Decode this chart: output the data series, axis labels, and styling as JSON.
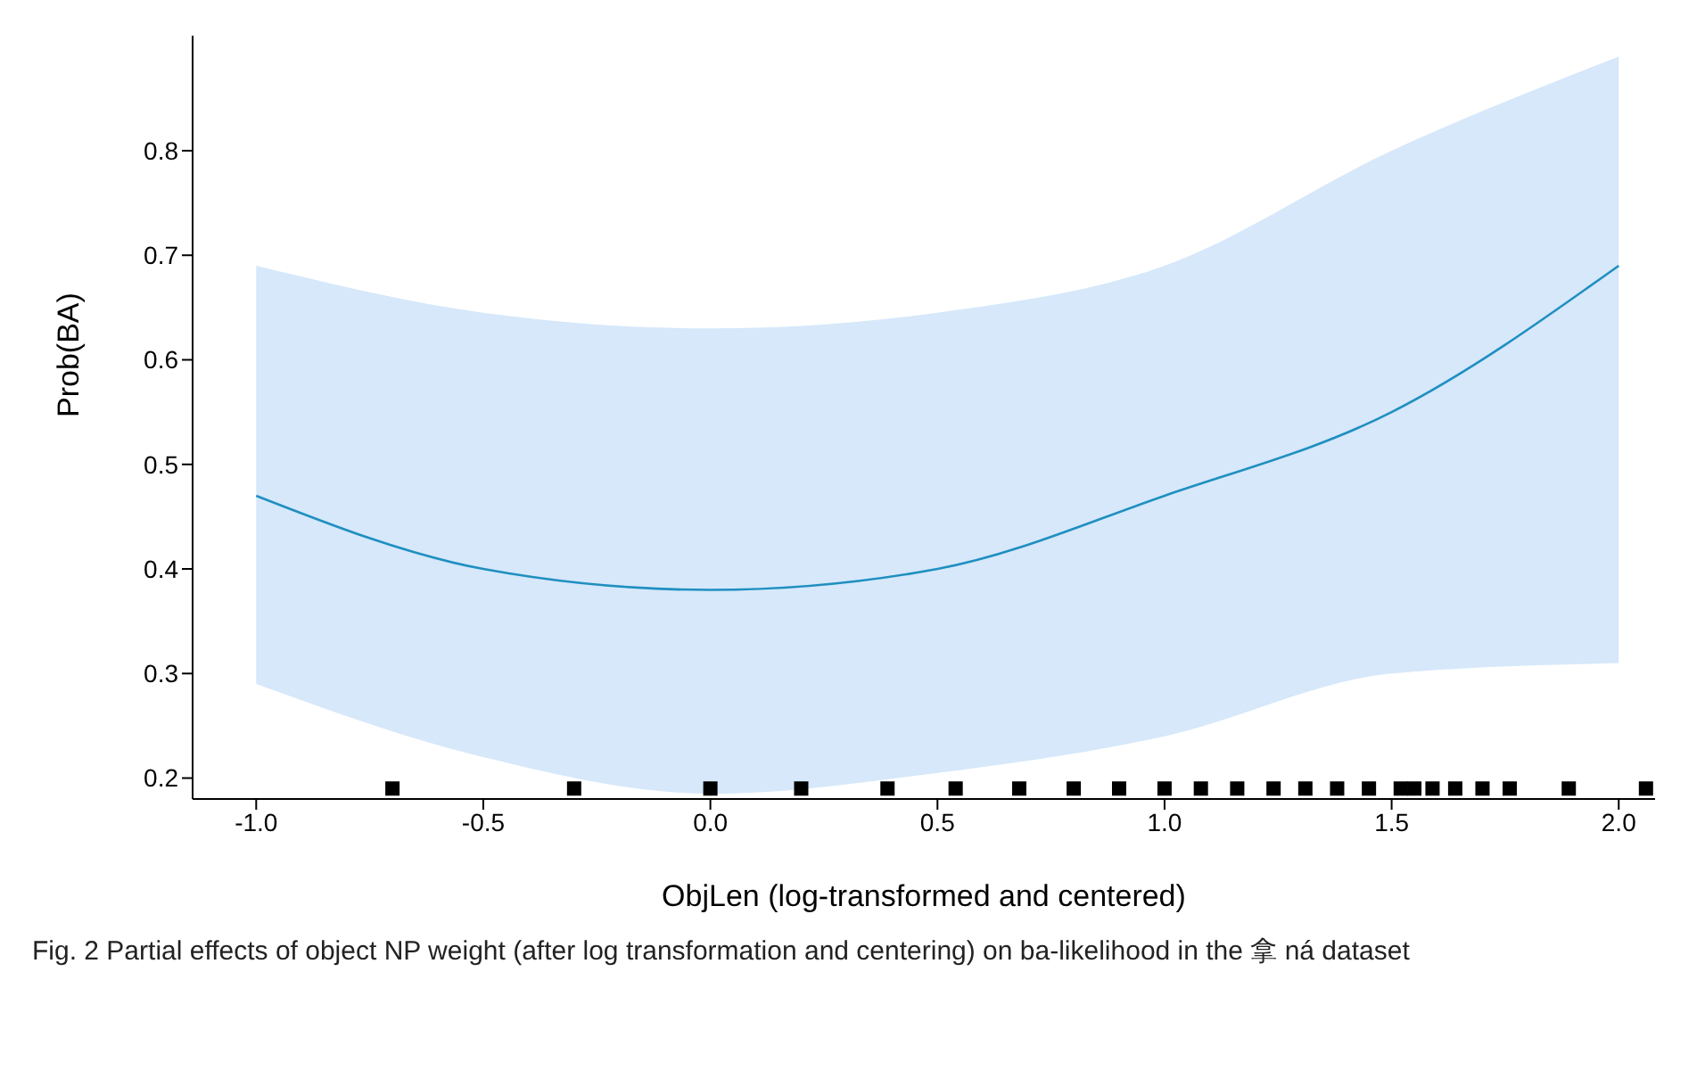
{
  "chart_data": {
    "type": "line",
    "xlabel": "ObjLen (log-transformed and centered)",
    "ylabel": "Prob(BA)",
    "annotations": [
      "Fig. 2 Partial effects of object NP weight (after log transformation and centering) on ba-likelihood in the 拿 ná dataset"
    ],
    "x": [
      -1,
      -0.5,
      0,
      0.5,
      1,
      1.5,
      2
    ],
    "series": [
      {
        "color": "#1f8fc0",
        "values": [
          0.47,
          0.4,
          0.38,
          0.4,
          0.47,
          0.55,
          0.69
        ],
        "lower": [
          0.29,
          0.22,
          0.185,
          0.205,
          0.24,
          0.3,
          0.31
        ],
        "upper": [
          0.69,
          0.645,
          0.63,
          0.645,
          0.69,
          0.8,
          0.89
        ]
      },
      {
        "type": "scatter",
        "color": "#000000",
        "x": [
          -0.7,
          -0.3,
          0,
          0.2,
          0.39,
          0.54,
          0.68,
          0.8,
          0.9,
          1.0,
          1.08,
          1.16,
          1.24,
          1.31,
          1.38,
          1.45,
          1.52,
          1.55,
          1.59,
          1.64,
          1.7,
          1.76,
          1.89,
          2.06
        ],
        "values": [
          0.19,
          0.19,
          0.19,
          0.19,
          0.19,
          0.19,
          0.19,
          0.19,
          0.19,
          0.19,
          0.19,
          0.19,
          0.19,
          0.19,
          0.19,
          0.19,
          0.19,
          0.19,
          0.19,
          0.19,
          0.19,
          0.19,
          0.19,
          0.19
        ],
        "marker": "square"
      }
    ],
    "xlim": [
      -1.14,
      2.08
    ],
    "xticks": [
      {
        "value": -1,
        "label": "-1.0"
      },
      -0.5,
      {
        "value": 0,
        "label": "0.0"
      },
      0.5,
      {
        "value": 1,
        "label": "1.0"
      },
      1.5,
      {
        "value": 2,
        "label": "2.0"
      }
    ],
    "ylim": [
      0.18,
      0.91
    ],
    "yticks": [
      0.2,
      0.3,
      0.4,
      0.5,
      0.6,
      0.7,
      0.8
    ],
    "grid": false,
    "legend": false,
    "marker": "none",
    "line_style": "solid"
  }
}
